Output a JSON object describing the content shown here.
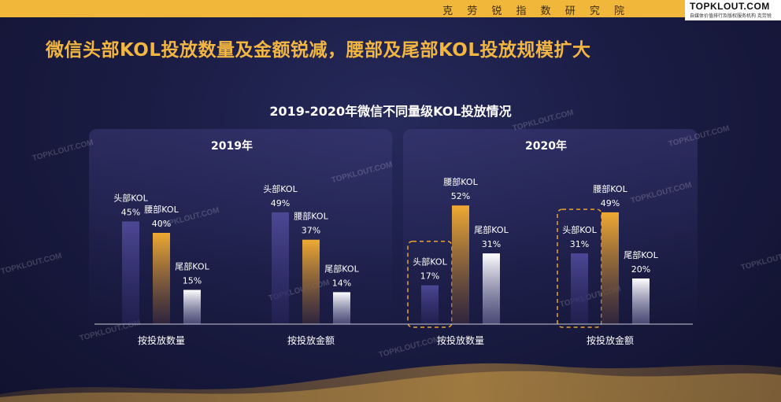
{
  "header": {
    "institute": "克 劳 锐 指 数 研 究 院",
    "logo": "TOPKLOUT.COM",
    "logo_sub": "自媒体价值排行及版权服务机构 克劳锐"
  },
  "headline": "微信头部KOL投放数量及金额锐减，腰部及尾部KOL投放规模扩大",
  "watermark_text": "TOPKLOUT.COM",
  "colors": {
    "head": "#4a4590",
    "waist": "#e9a431",
    "tail": "#ffffff",
    "highlight": "#e9a431"
  },
  "chart_data": {
    "type": "bar",
    "title": "2019-2020年微信不同量级KOL投放情况",
    "panels": [
      {
        "name": "2019年",
        "groups": [
          {
            "category": "按投放数量",
            "bars": [
              {
                "series": "头部KOL",
                "value": 45,
                "label": "45%"
              },
              {
                "series": "腰部KOL",
                "value": 40,
                "label": "40%"
              },
              {
                "series": "尾部KOL",
                "value": 15,
                "label": "15%"
              }
            ]
          },
          {
            "category": "按投放金额",
            "bars": [
              {
                "series": "头部KOL",
                "value": 49,
                "label": "49%"
              },
              {
                "series": "腰部KOL",
                "value": 37,
                "label": "37%"
              },
              {
                "series": "尾部KOL",
                "value": 14,
                "label": "14%"
              }
            ]
          }
        ]
      },
      {
        "name": "2020年",
        "groups": [
          {
            "category": "按投放数量",
            "bars": [
              {
                "series": "头部KOL",
                "value": 17,
                "label": "17%",
                "highlight": true
              },
              {
                "series": "腰部KOL",
                "value": 52,
                "label": "52%"
              },
              {
                "series": "尾部KOL",
                "value": 31,
                "label": "31%"
              }
            ]
          },
          {
            "category": "按投放金额",
            "bars": [
              {
                "series": "头部KOL",
                "value": 31,
                "label": "31%",
                "highlight": true
              },
              {
                "series": "腰部KOL",
                "value": 49,
                "label": "49%"
              },
              {
                "series": "尾部KOL",
                "value": 20,
                "label": "20%"
              }
            ]
          }
        ]
      }
    ],
    "ylim": [
      0,
      60
    ],
    "grid": false
  }
}
